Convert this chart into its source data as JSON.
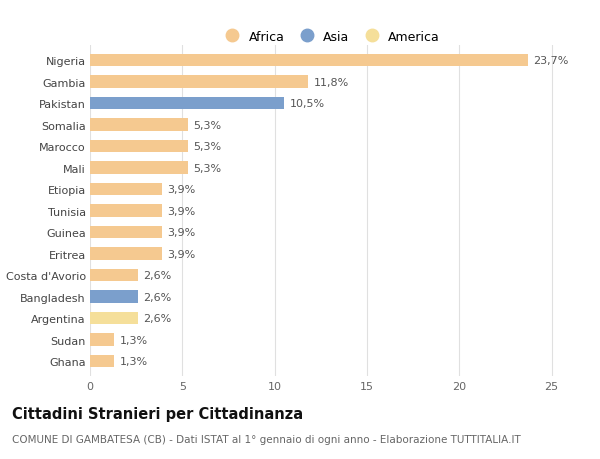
{
  "countries": [
    "Nigeria",
    "Gambia",
    "Pakistan",
    "Somalia",
    "Marocco",
    "Mali",
    "Etiopia",
    "Tunisia",
    "Guinea",
    "Eritrea",
    "Costa d'Avorio",
    "Bangladesh",
    "Argentina",
    "Sudan",
    "Ghana"
  ],
  "values": [
    23.7,
    11.8,
    10.5,
    5.3,
    5.3,
    5.3,
    3.9,
    3.9,
    3.9,
    3.9,
    2.6,
    2.6,
    2.6,
    1.3,
    1.3
  ],
  "labels": [
    "23,7%",
    "11,8%",
    "10,5%",
    "5,3%",
    "5,3%",
    "5,3%",
    "3,9%",
    "3,9%",
    "3,9%",
    "3,9%",
    "2,6%",
    "2,6%",
    "2,6%",
    "1,3%",
    "1,3%"
  ],
  "continents": [
    "Africa",
    "Africa",
    "Asia",
    "Africa",
    "Africa",
    "Africa",
    "Africa",
    "Africa",
    "Africa",
    "Africa",
    "Africa",
    "Asia",
    "America",
    "Africa",
    "Africa"
  ],
  "colors": {
    "Africa": "#F5C990",
    "Asia": "#7B9FCC",
    "America": "#F5DF9A"
  },
  "legend_colors": {
    "Africa": "#F5C990",
    "Asia": "#7B9FCC",
    "America": "#F5DF9A"
  },
  "title": "Cittadini Stranieri per Cittadinanza",
  "subtitle": "COMUNE DI GAMBATESA (CB) - Dati ISTAT al 1° gennaio di ogni anno - Elaborazione TUTTITALIA.IT",
  "xlim": [
    0,
    26
  ],
  "xticks": [
    0,
    5,
    10,
    15,
    20,
    25
  ],
  "bar_height": 0.58,
  "bg_color": "#ffffff",
  "grid_color": "#e0e0e0",
  "label_fontsize": 8.0,
  "tick_fontsize": 8.0,
  "title_fontsize": 10.5,
  "subtitle_fontsize": 7.5
}
